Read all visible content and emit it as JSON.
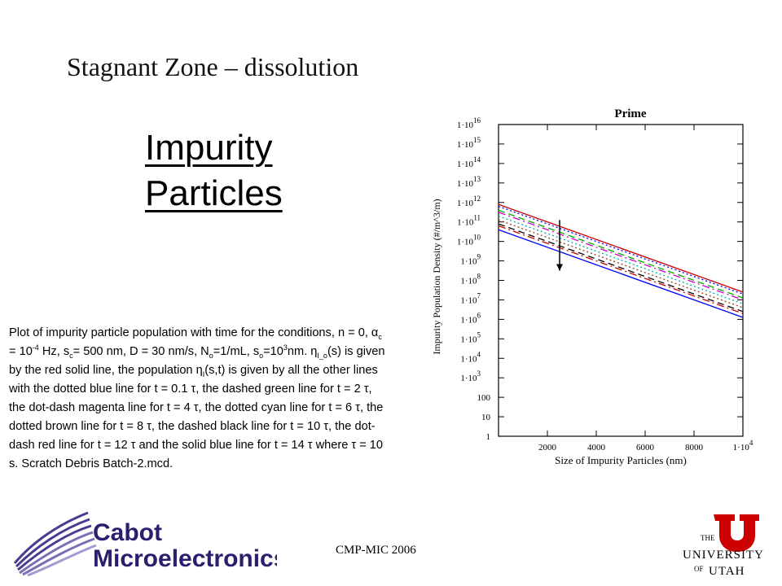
{
  "slide": {
    "title": "Stagnant Zone – dissolution",
    "heading_line1": "Impurity",
    "heading_line2": "Particles",
    "footer": "CMP-MIC 2006"
  },
  "caption": {
    "p1": "Plot of impurity particle population with time for the conditions, n = 0, α",
    "p1_sub": "c",
    "p2": " = 10",
    "p2_sup": "-4",
    "p3": " Hz, s",
    "p3_sub": "c",
    "p4": "= 500 nm, D = 30 nm/s, N",
    "p4_sub": "o",
    "p5": "=1/mL, s",
    "p5_sub": "o",
    "p6": "=10",
    "p6_sup": "3",
    "p7": "nm.  η",
    "p7_sub": "I_o",
    "p8": "(s) is given by the red solid line, the population η",
    "p8_sub": "I",
    "p9": "(s,t) is given by all the other lines with the dotted blue line for t = 0.1 τ, the dashed green line for t = 2 τ, the dot-dash magenta line for t = 4 τ, the dotted cyan line for t = 6 τ, the dotted brown line for t = 8 τ, the dashed black line for t = 10 τ, the dot-dash red line for t = 12 τ and the solid blue line for t = 14 τ where τ = 10 s. Scratch Debris Batch-2.mcd."
  },
  "logos": {
    "cabot_line1": "Cabot",
    "cabot_line2": "Microelectronics",
    "utah_the": "THE",
    "utah_university": "UNIVERSITY",
    "utah_of": "OF",
    "utah_utah": "UTAH"
  },
  "chart_data": {
    "type": "line",
    "title": "Prime",
    "xlabel": "Size of Impurity Particles (nm)",
    "ylabel": "Impurity Population Density (#/m^3/m)",
    "xlim": [
      0,
      10000
    ],
    "ylim_log10": [
      0,
      16
    ],
    "yscale": "log",
    "x_ticks": [
      {
        "value": 2000,
        "label": "2000"
      },
      {
        "value": 4000,
        "label": "4000"
      },
      {
        "value": 6000,
        "label": "6000"
      },
      {
        "value": 8000,
        "label": "8000"
      },
      {
        "value": 10000,
        "label": "1·10",
        "exp": "4"
      }
    ],
    "y_ticks": [
      {
        "value": 0,
        "label": "1",
        "exp": ""
      },
      {
        "value": 1,
        "label": "10",
        "exp": ""
      },
      {
        "value": 2,
        "label": "100",
        "exp": ""
      },
      {
        "value": 3,
        "label": "1·10",
        "exp": "3"
      },
      {
        "value": 4,
        "label": "1·10",
        "exp": "4"
      },
      {
        "value": 5,
        "label": "1·10",
        "exp": "5"
      },
      {
        "value": 6,
        "label": "1·10",
        "exp": "6"
      },
      {
        "value": 7,
        "label": "1·10",
        "exp": "7"
      },
      {
        "value": 8,
        "label": "1·10",
        "exp": "8"
      },
      {
        "value": 9,
        "label": "1·10",
        "exp": "9"
      },
      {
        "value": 10,
        "label": "1·10",
        "exp": "10"
      },
      {
        "value": 11,
        "label": "1·10",
        "exp": "11"
      },
      {
        "value": 12,
        "label": "1·10",
        "exp": "12"
      },
      {
        "value": 13,
        "label": "1·10",
        "exp": "13"
      },
      {
        "value": 14,
        "label": "1·10",
        "exp": "14"
      },
      {
        "value": 15,
        "label": "1·10",
        "exp": "15"
      },
      {
        "value": 16,
        "label": "1·10",
        "exp": "16"
      }
    ],
    "series": [
      {
        "color": "#cc0000",
        "style": "solid",
        "x": [
          0,
          10000
        ],
        "log10_y": [
          11.9,
          7.4
        ]
      },
      {
        "color": "#0000ff",
        "style": "dotted",
        "x": [
          0,
          10000
        ],
        "log10_y": [
          11.8,
          7.3
        ]
      },
      {
        "color": "#00aa00",
        "style": "dashed",
        "x": [
          0,
          10000
        ],
        "log10_y": [
          11.6,
          7.1
        ]
      },
      {
        "color": "#cc00cc",
        "style": "dashdot",
        "x": [
          0,
          10000
        ],
        "log10_y": [
          11.5,
          7.0
        ]
      },
      {
        "color": "#00aaaa",
        "style": "dotted",
        "x": [
          0,
          10000
        ],
        "log10_y": [
          11.3,
          6.8
        ]
      },
      {
        "color": "#8b4513",
        "style": "dotted",
        "x": [
          0,
          10000
        ],
        "log10_y": [
          11.1,
          6.6
        ]
      },
      {
        "color": "#000000",
        "style": "dashed",
        "x": [
          0,
          10000
        ],
        "log10_y": [
          10.9,
          6.4
        ]
      },
      {
        "color": "#cc0000",
        "style": "dashdot",
        "x": [
          0,
          10000
        ],
        "log10_y": [
          10.8,
          6.3
        ]
      },
      {
        "color": "#0000ff",
        "style": "solid",
        "x": [
          0,
          10000
        ],
        "log10_y": [
          10.6,
          6.1
        ]
      }
    ],
    "annotation_arrow": {
      "x": 2500,
      "log10_y_from": 11.1,
      "log10_y_to": 8.5
    }
  }
}
